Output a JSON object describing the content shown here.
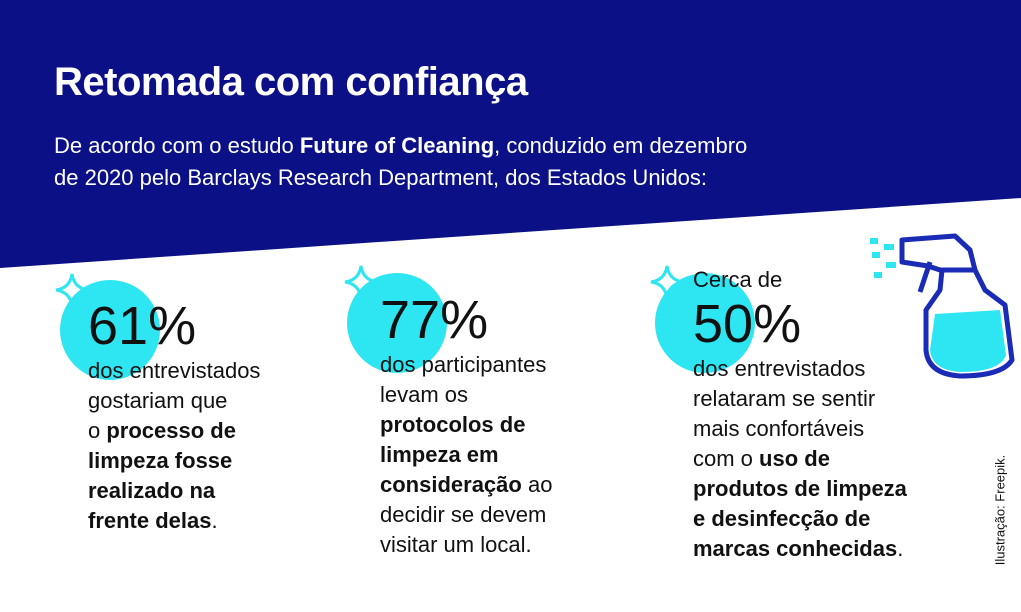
{
  "header": {
    "title": "Retomada com confiança",
    "intro": [
      [
        {
          "text": "De acordo com o estudo ",
          "bold": false
        },
        {
          "text": "Future of Cleaning",
          "bold": true
        },
        {
          "text": ", conduzido em dezembro",
          "bold": false
        }
      ],
      [
        {
          "text": "de 2020 pelo Barclays Research Department, dos Estados Unidos:",
          "bold": false
        }
      ]
    ]
  },
  "stats": [
    {
      "prefix": null,
      "number": "61%",
      "lines": [
        [
          {
            "text": "dos entrevistados",
            "bold": false
          }
        ],
        [
          {
            "text": "gostariam que",
            "bold": false
          }
        ],
        [
          {
            "text": "o ",
            "bold": false
          },
          {
            "text": "processo de",
            "bold": true
          }
        ],
        [
          {
            "text": "limpeza fosse",
            "bold": true
          }
        ],
        [
          {
            "text": "realizado na",
            "bold": true
          }
        ],
        [
          {
            "text": "frente delas",
            "bold": true
          },
          {
            "text": ".",
            "bold": false
          }
        ]
      ]
    },
    {
      "prefix": null,
      "number": "77%",
      "lines": [
        [
          {
            "text": "dos participantes",
            "bold": false
          }
        ],
        [
          {
            "text": "levam os",
            "bold": false
          }
        ],
        [
          {
            "text": "protocolos de",
            "bold": true
          }
        ],
        [
          {
            "text": "limpeza em",
            "bold": true
          }
        ],
        [
          {
            "text": "consideração",
            "bold": true
          },
          {
            "text": " ao",
            "bold": false
          }
        ],
        [
          {
            "text": "decidir se devem",
            "bold": false
          }
        ],
        [
          {
            "text": "visitar um local.",
            "bold": false
          }
        ]
      ]
    },
    {
      "prefix": "Cerca de",
      "number": "50%",
      "lines": [
        [
          {
            "text": "dos entrevistados",
            "bold": false
          }
        ],
        [
          {
            "text": "relataram se sentir",
            "bold": false
          }
        ],
        [
          {
            "text": "mais confortáveis",
            "bold": false
          }
        ],
        [
          {
            "text": "com o ",
            "bold": false
          },
          {
            "text": "uso de",
            "bold": true
          }
        ],
        [
          {
            "text": "produtos de limpeza",
            "bold": true
          }
        ],
        [
          {
            "text": "e desinfecção de",
            "bold": true
          }
        ],
        [
          {
            "text": "marcas conhecidas",
            "bold": true
          },
          {
            "text": ".",
            "bold": false
          }
        ]
      ]
    }
  ],
  "credit": "Ilustração: Freepik."
}
